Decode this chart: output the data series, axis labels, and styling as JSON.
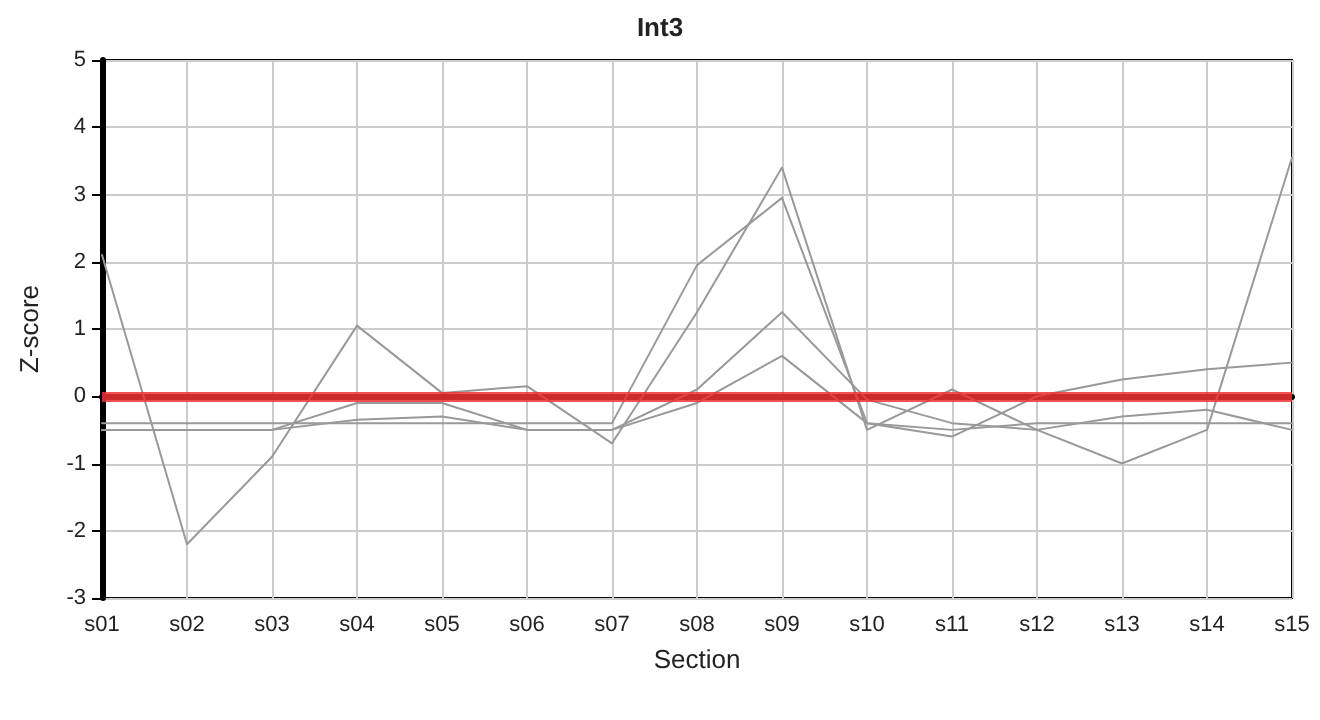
{
  "chart_data": {
    "type": "line",
    "title": "Int3",
    "xlabel": "Section",
    "ylabel": "Z-score",
    "categories": [
      "s01",
      "s02",
      "s03",
      "s04",
      "s05",
      "s06",
      "s07",
      "s08",
      "s09",
      "s10",
      "s11",
      "s12",
      "s13",
      "s14",
      "s15"
    ],
    "series": [
      {
        "color": "#999999",
        "values": [
          2.1,
          -2.2,
          -0.9,
          1.05,
          0.05,
          0.15,
          -0.7,
          1.25,
          3.4,
          -0.5,
          0.1,
          -0.5,
          -1.0,
          -0.5,
          3.55
        ]
      },
      {
        "color": "#999999",
        "values": [
          -0.4,
          -0.4,
          -0.4,
          -0.4,
          -0.4,
          -0.4,
          -0.4,
          1.95,
          2.95,
          -0.4,
          -0.6,
          0,
          0.25,
          0.4,
          0.5
        ]
      },
      {
        "color": "#999999",
        "values": [
          -0.5,
          -0.5,
          -0.5,
          -0.1,
          -0.1,
          -0.5,
          -0.5,
          0.1,
          1.25,
          -0.05,
          -0.4,
          -0.5,
          -0.3,
          -0.2,
          -0.5
        ]
      },
      {
        "color": "#999999",
        "values": [
          -0.5,
          -0.5,
          -0.5,
          -0.35,
          -0.3,
          -0.5,
          -0.5,
          -0.1,
          0.6,
          -0.4,
          -0.5,
          -0.4,
          -0.4,
          -0.4,
          -0.4
        ]
      }
    ],
    "ylim": [
      -3,
      5
    ],
    "yticks": [
      -3,
      -2,
      -1,
      0,
      1,
      2,
      3,
      4,
      5
    ],
    "grid": true,
    "marker": "none",
    "line_style": "solid",
    "ref_lines": [
      {
        "axis": "y",
        "value": 0,
        "color": "#ee3333"
      }
    ]
  }
}
